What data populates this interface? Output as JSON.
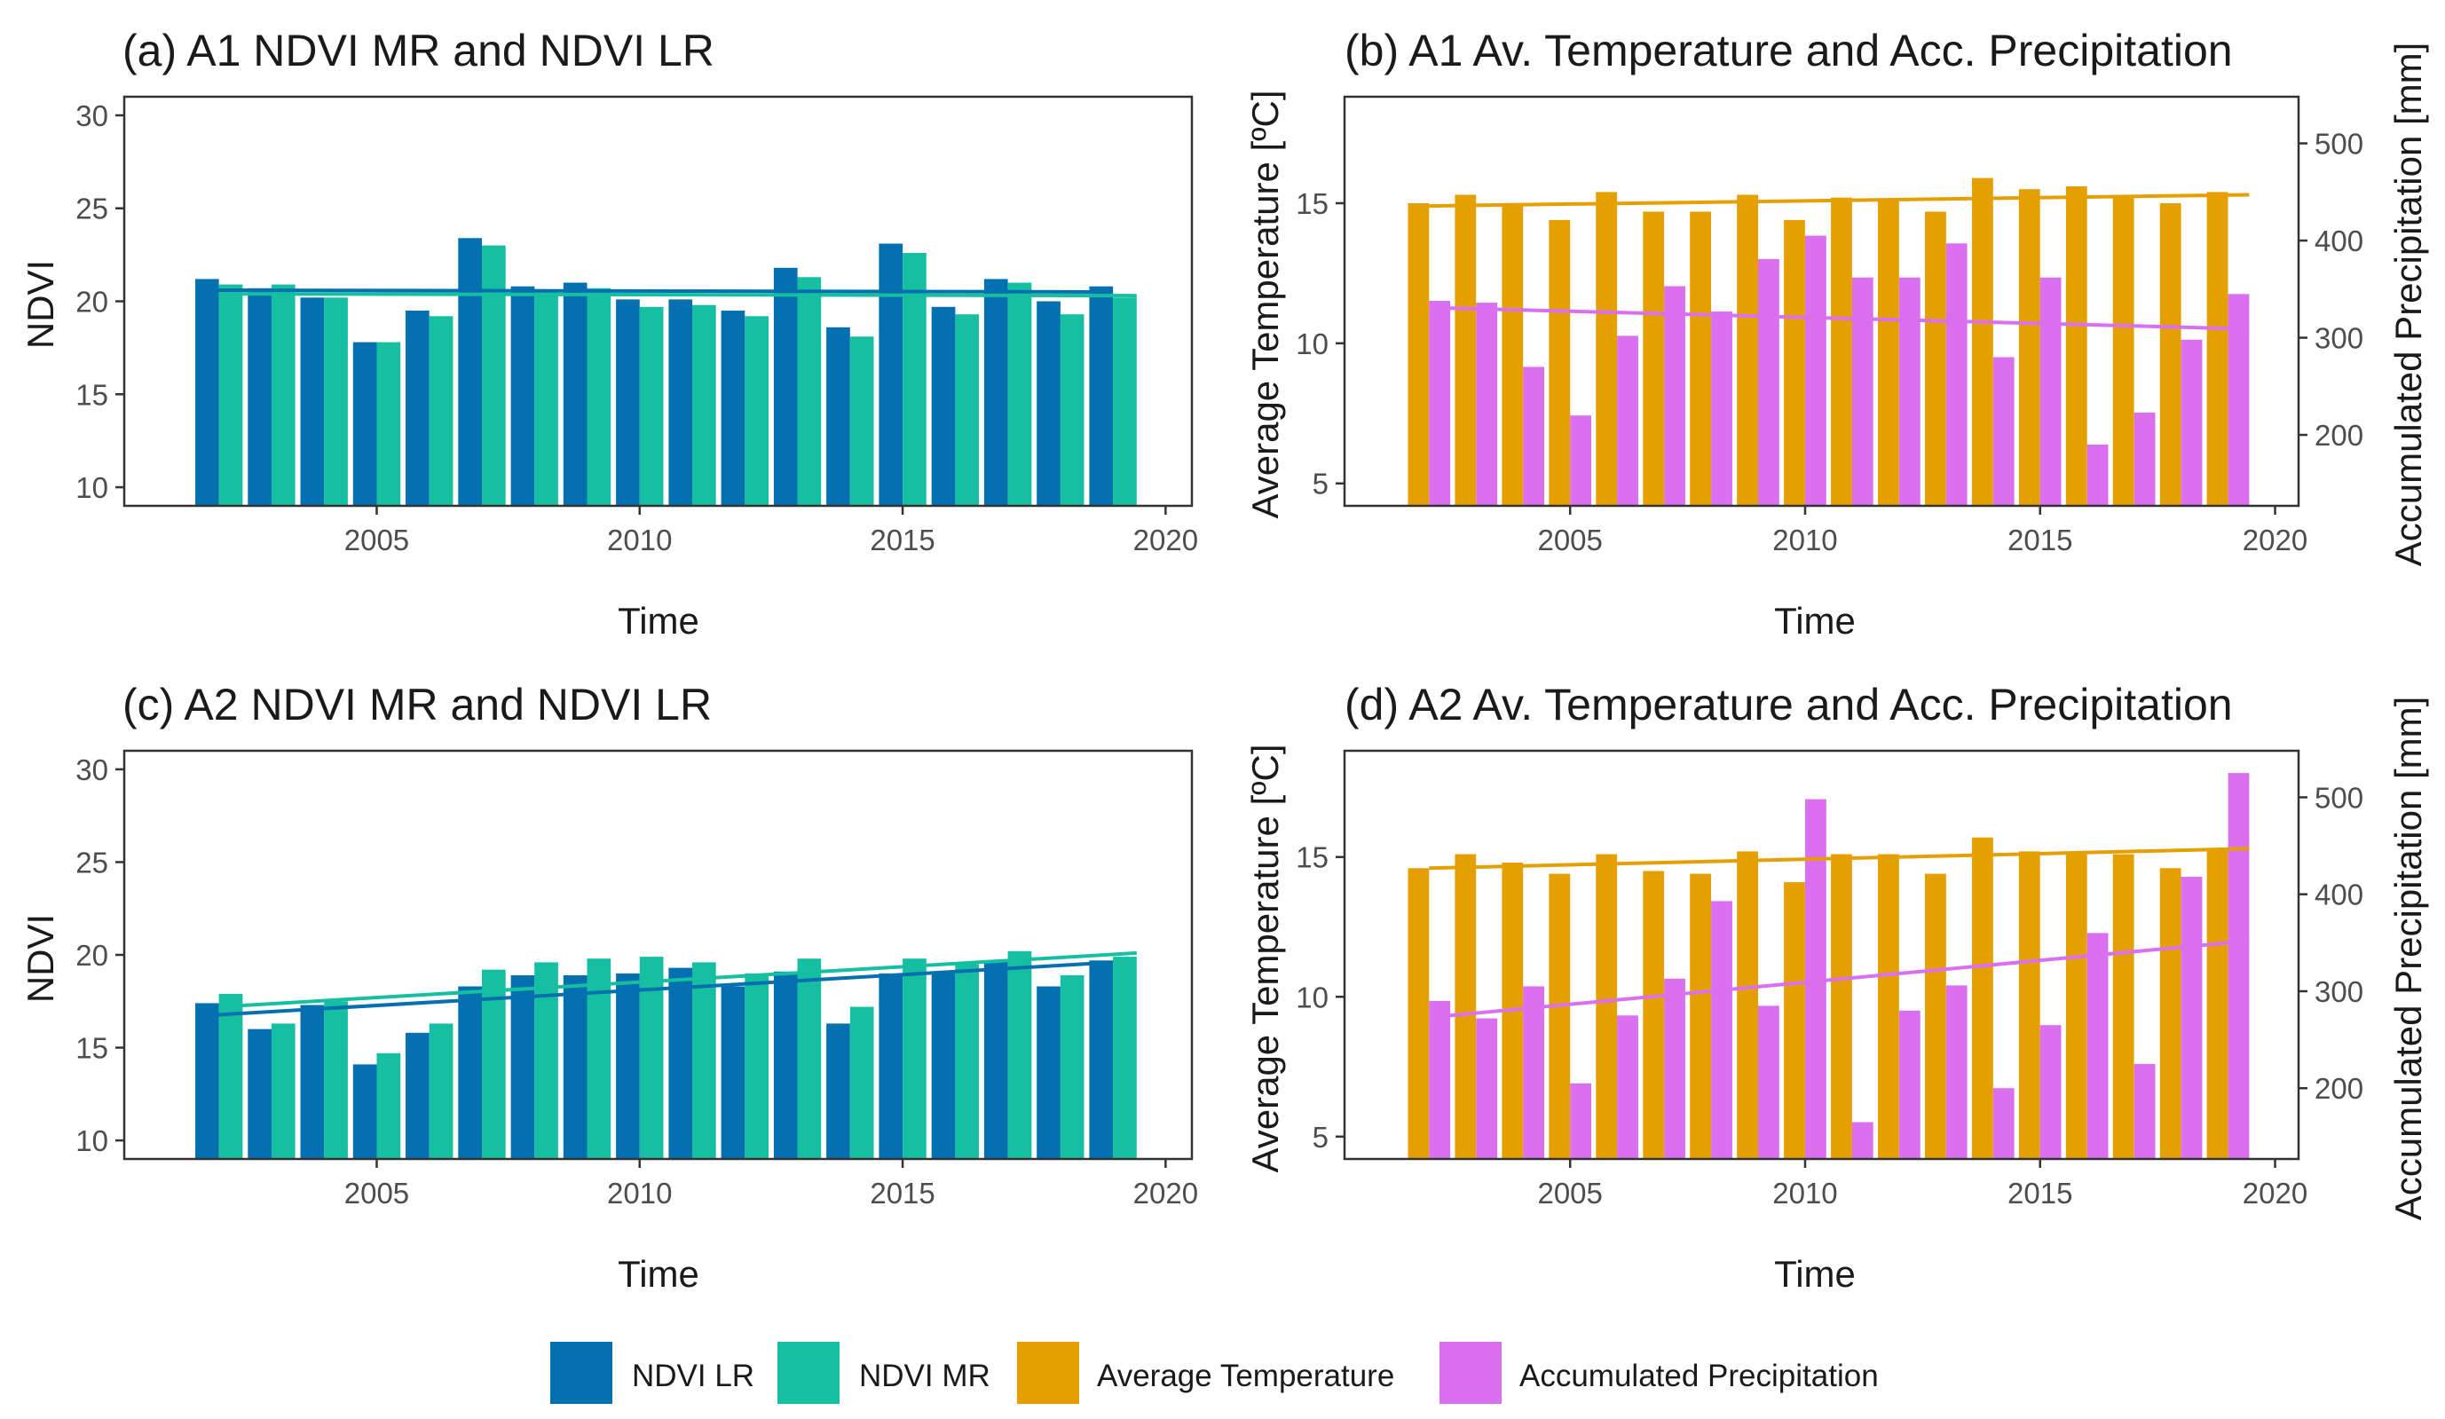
{
  "colors": {
    "ndvi_lr": "#0570b0",
    "ndvi_mr": "#16bfa2",
    "temperature": "#e69f00",
    "precipitation": "#da6ff0"
  },
  "chart_data": [
    {
      "type": "bar",
      "id": "a",
      "title": "(a) A1 NDVI MR and NDVI LR",
      "xlabel": "Time",
      "ylabel": "NDVI",
      "xlim": [
        2000.2,
        2020.5
      ],
      "ylim": [
        9,
        31
      ],
      "xticks": [
        2005,
        2010,
        2015,
        2020
      ],
      "yticks": [
        10,
        15,
        20,
        25,
        30
      ],
      "years": [
        2002,
        2003,
        2004,
        2005,
        2006,
        2007,
        2008,
        2009,
        2010,
        2011,
        2012,
        2013,
        2014,
        2015,
        2016,
        2017,
        2018,
        2019
      ],
      "series": [
        {
          "name": "NDVI LR",
          "color_key": "ndvi_lr",
          "values": [
            21.2,
            20.7,
            20.2,
            17.8,
            19.5,
            23.4,
            20.8,
            21.0,
            20.1,
            20.1,
            19.5,
            21.8,
            18.6,
            23.1,
            19.7,
            21.2,
            20.0,
            20.8
          ],
          "trend": [
            20.6,
            20.5
          ]
        },
        {
          "name": "NDVI MR",
          "color_key": "ndvi_mr",
          "values": [
            20.9,
            20.9,
            20.2,
            17.8,
            19.2,
            23.0,
            20.5,
            20.7,
            19.7,
            19.8,
            19.2,
            21.3,
            18.1,
            22.6,
            19.3,
            21.0,
            19.3,
            20.2
          ],
          "trend": [
            20.4,
            20.3
          ]
        }
      ]
    },
    {
      "type": "bar",
      "id": "b",
      "title": "(b) A1 Av. Temperature and Acc. Precipitation",
      "xlabel": "Time",
      "ylabel": "Average Temperature [ºC]",
      "ylabel_right": "Accumulated Precipitation [mm]",
      "xlim": [
        2000.2,
        2020.5
      ],
      "ylim": [
        4.2,
        18.8
      ],
      "ylim_right": [
        127,
        548
      ],
      "xticks": [
        2005,
        2010,
        2015,
        2020
      ],
      "yticks": [
        5,
        10,
        15
      ],
      "yticks_right": [
        200,
        300,
        400,
        500
      ],
      "years": [
        2002,
        2003,
        2004,
        2005,
        2006,
        2007,
        2008,
        2009,
        2010,
        2011,
        2012,
        2013,
        2014,
        2015,
        2016,
        2017,
        2018,
        2019
      ],
      "series": [
        {
          "name": "Average Temperature",
          "axis": "left",
          "color_key": "temperature",
          "values": [
            15.0,
            15.3,
            15.0,
            14.4,
            15.4,
            14.7,
            14.7,
            15.3,
            14.4,
            15.2,
            15.1,
            14.7,
            15.9,
            15.5,
            15.6,
            15.3,
            15.0,
            15.4
          ],
          "trend": [
            14.9,
            15.3
          ]
        },
        {
          "name": "Accumulated Precipitation",
          "axis": "right",
          "color_key": "precipitation",
          "values": [
            338,
            336,
            270,
            220,
            302,
            353,
            327,
            381,
            405,
            362,
            362,
            397,
            280,
            362,
            190,
            223,
            298,
            345
          ],
          "trend": [
            331,
            309
          ]
        }
      ]
    },
    {
      "type": "bar",
      "id": "c",
      "title": "(c) A2 NDVI MR and NDVI LR",
      "xlabel": "Time",
      "ylabel": "NDVI",
      "xlim": [
        2000.2,
        2020.5
      ],
      "ylim": [
        9,
        31
      ],
      "xticks": [
        2005,
        2010,
        2015,
        2020
      ],
      "yticks": [
        10,
        15,
        20,
        25,
        30
      ],
      "years": [
        2002,
        2003,
        2004,
        2005,
        2006,
        2007,
        2008,
        2009,
        2010,
        2011,
        2012,
        2013,
        2014,
        2015,
        2016,
        2017,
        2018,
        2019
      ],
      "series": [
        {
          "name": "NDVI LR",
          "color_key": "ndvi_lr",
          "values": [
            17.4,
            16.0,
            17.3,
            14.1,
            15.8,
            18.3,
            18.9,
            18.9,
            19.0,
            19.3,
            18.3,
            19.1,
            16.3,
            19.0,
            19.0,
            19.7,
            18.3,
            19.7
          ],
          "trend": [
            16.7,
            19.6
          ]
        },
        {
          "name": "NDVI MR",
          "color_key": "ndvi_mr",
          "values": [
            17.9,
            16.3,
            17.5,
            14.7,
            16.3,
            19.2,
            19.6,
            19.8,
            19.9,
            19.6,
            19.0,
            19.8,
            17.2,
            19.8,
            19.5,
            20.2,
            18.9,
            19.9
          ],
          "trend": [
            17.2,
            20.1
          ]
        }
      ]
    },
    {
      "type": "bar",
      "id": "d",
      "title": "(d) A2 Av. Temperature and Acc. Precipitation",
      "xlabel": "Time",
      "ylabel": "Average Temperature [ºC]",
      "ylabel_right": "Accumulated Precipitation [mm]",
      "xlim": [
        2000.2,
        2020.5
      ],
      "ylim": [
        4.2,
        18.8
      ],
      "ylim_right": [
        127,
        548
      ],
      "xticks": [
        2005,
        2010,
        2015,
        2020
      ],
      "yticks": [
        5,
        10,
        15
      ],
      "yticks_right": [
        200,
        300,
        400,
        500
      ],
      "years": [
        2002,
        2003,
        2004,
        2005,
        2006,
        2007,
        2008,
        2009,
        2010,
        2011,
        2012,
        2013,
        2014,
        2015,
        2016,
        2017,
        2018,
        2019
      ],
      "series": [
        {
          "name": "Average Temperature",
          "axis": "left",
          "color_key": "temperature",
          "values": [
            14.6,
            15.1,
            14.8,
            14.4,
            15.1,
            14.5,
            14.4,
            15.2,
            14.1,
            15.1,
            15.1,
            14.4,
            15.7,
            15.2,
            15.1,
            15.1,
            14.6,
            15.3
          ],
          "trend": [
            14.6,
            15.3
          ]
        },
        {
          "name": "Accumulated Precipitation",
          "axis": "right",
          "color_key": "precipitation",
          "values": [
            290,
            272,
            305,
            205,
            275,
            313,
            393,
            285,
            498,
            165,
            280,
            306,
            200,
            265,
            360,
            225,
            418,
            525
          ],
          "trend": [
            273,
            352
          ]
        }
      ]
    }
  ],
  "legend": [
    {
      "label": "NDVI LR",
      "color_key": "ndvi_lr"
    },
    {
      "label": "NDVI MR",
      "color_key": "ndvi_mr"
    },
    {
      "label": "Average Temperature",
      "color_key": "temperature"
    },
    {
      "label": "Accumulated Precipitation",
      "color_key": "precipitation"
    }
  ]
}
